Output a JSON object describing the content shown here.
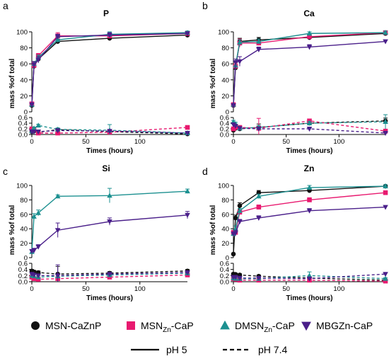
{
  "colors": {
    "MSN-CaZnP": "#111111",
    "MSNZn-CaP": "#e8196f",
    "DMSNZn-CaP": "#1c9090",
    "MBGZn-CaP": "#4a1f8a"
  },
  "legend": {
    "series": [
      {
        "key": "MSN-CaZnP",
        "pre": "MSN-CaZnP",
        "sub": "",
        "post": "",
        "marker": "circle"
      },
      {
        "key": "MSNZn-CaP",
        "pre": "MSN",
        "sub": "Zn",
        "post": "-CaP",
        "marker": "square"
      },
      {
        "key": "DMSNZn-CaP",
        "pre": "DMSN",
        "sub": "Zn",
        "post": "-CaP",
        "marker": "triangle"
      },
      {
        "key": "MBGZn-CaP",
        "pre": "MBGZn-CaP",
        "sub": "",
        "post": "",
        "marker": "triangle-down"
      }
    ],
    "lines": [
      {
        "label": "pH 5",
        "style": "solid"
      },
      {
        "label": "pH 7.4",
        "style": "dashed"
      }
    ]
  },
  "chart_data": [
    {
      "type": "line",
      "panel": "a",
      "title": "P",
      "xlabel": "Times (hours)",
      "ylabel": "mass %of total",
      "xlim": [
        0,
        144
      ],
      "xticks": [
        0,
        50,
        100
      ],
      "upper": {
        "ylim": [
          0,
          100
        ],
        "yticks": [
          0,
          20,
          40,
          60,
          80,
          100
        ]
      },
      "lower": {
        "ylim": [
          0,
          0.6
        ],
        "yticks": [
          0.0,
          0.2,
          0.4,
          0.6
        ]
      },
      "x": [
        0,
        2,
        6,
        24,
        72,
        144
      ],
      "series": [
        {
          "key": "MSN-CaZnP",
          "ph": "5",
          "part": "upper",
          "values": [
            8,
            57,
            66,
            88,
            92,
            96
          ],
          "err": [
            1,
            4,
            4,
            3,
            3,
            3
          ]
        },
        {
          "key": "MSNZn-CaP",
          "ph": "5",
          "part": "upper",
          "values": [
            10,
            58,
            70,
            95,
            95,
            98
          ],
          "err": [
            1,
            4,
            3,
            4,
            3,
            2
          ]
        },
        {
          "key": "DMSNZn-CaP",
          "ph": "5",
          "part": "upper",
          "values": [
            9,
            60,
            68,
            90,
            97,
            99
          ],
          "err": [
            1,
            3,
            3,
            3,
            3,
            2
          ]
        },
        {
          "key": "MBGZn-CaP",
          "ph": "5",
          "part": "upper",
          "values": [
            9,
            59,
            65,
            94,
            96,
            98
          ],
          "err": [
            1,
            4,
            4,
            3,
            3,
            2
          ]
        },
        {
          "key": "MSN-CaZnP",
          "ph": "7.4",
          "part": "lower",
          "values": [
            0.1,
            0.12,
            0.08,
            0.17,
            0.1,
            0.02
          ],
          "err": [
            0.03,
            0.03,
            0.03,
            0.05,
            0.04,
            0.01
          ]
        },
        {
          "key": "MSNZn-CaP",
          "ph": "7.4",
          "part": "lower",
          "values": [
            0.2,
            0.18,
            0.05,
            0.05,
            0.08,
            0.25
          ],
          "err": [
            0.04,
            0.03,
            0.02,
            0.02,
            0.03,
            0.04
          ]
        },
        {
          "key": "DMSNZn-CaP",
          "ph": "7.4",
          "part": "lower",
          "values": [
            0.12,
            0.22,
            0.32,
            0.18,
            0.15,
            0.05
          ],
          "err": [
            0.03,
            0.04,
            0.04,
            0.05,
            0.2,
            0.02
          ]
        },
        {
          "key": "MBGZn-CaP",
          "ph": "7.4",
          "part": "lower",
          "values": [
            0.1,
            0.1,
            0.1,
            0.14,
            0.12,
            0.05
          ],
          "err": [
            0.03,
            0.03,
            0.03,
            0.04,
            0.04,
            0.02
          ]
        }
      ]
    },
    {
      "type": "line",
      "panel": "b",
      "title": "Ca",
      "xlabel": "Times (hours)",
      "ylabel": "mass %of total",
      "xlim": [
        0,
        144
      ],
      "xticks": [
        0,
        50,
        100
      ],
      "upper": {
        "ylim": [
          0,
          100
        ],
        "yticks": [
          0,
          20,
          40,
          60,
          80,
          100
        ]
      },
      "lower": {
        "ylim": [
          0,
          0.6
        ],
        "yticks": [
          0.0,
          0.2,
          0.4,
          0.6
        ]
      },
      "x": [
        0,
        2,
        6,
        24,
        72,
        144
      ],
      "series": [
        {
          "key": "MSN-CaZnP",
          "ph": "5",
          "part": "upper",
          "values": [
            8,
            55,
            88,
            90,
            93,
            98
          ],
          "err": [
            1,
            4,
            4,
            3,
            3,
            2
          ]
        },
        {
          "key": "MSNZn-CaP",
          "ph": "5",
          "part": "upper",
          "values": [
            9,
            57,
            86,
            86,
            94,
            99
          ],
          "err": [
            1,
            4,
            5,
            3,
            3,
            2
          ]
        },
        {
          "key": "DMSNZn-CaP",
          "ph": "5",
          "part": "upper",
          "values": [
            9,
            58,
            87,
            88,
            98,
            99
          ],
          "err": [
            1,
            4,
            3,
            3,
            2,
            2
          ]
        },
        {
          "key": "MBGZn-CaP",
          "ph": "5",
          "part": "upper",
          "values": [
            8,
            62,
            63,
            78,
            81,
            88
          ],
          "err": [
            1,
            4,
            6,
            3,
            3,
            2
          ]
        },
        {
          "key": "MSN-CaZnP",
          "ph": "7.4",
          "part": "lower",
          "values": [
            0.15,
            0.22,
            0.2,
            0.25,
            0.4,
            0.48
          ],
          "err": [
            0.04,
            0.05,
            0.05,
            0.12,
            0.06,
            0.1
          ]
        },
        {
          "key": "MSNZn-CaP",
          "ph": "7.4",
          "part": "lower",
          "values": [
            0.2,
            0.25,
            0.25,
            0.22,
            0.48,
            0.12
          ],
          "err": [
            0.04,
            0.05,
            0.05,
            0.35,
            0.05,
            0.05
          ]
        },
        {
          "key": "DMSNZn-CaP",
          "ph": "7.4",
          "part": "lower",
          "values": [
            0.45,
            0.38,
            0.22,
            0.25,
            0.4,
            0.45
          ],
          "err": [
            0.05,
            0.05,
            0.04,
            0.06,
            0.06,
            0.25
          ]
        },
        {
          "key": "MBGZn-CaP",
          "ph": "7.4",
          "part": "lower",
          "values": [
            0.35,
            0.3,
            0.22,
            0.2,
            0.2,
            0.05
          ],
          "err": [
            0.05,
            0.05,
            0.04,
            0.04,
            0.04,
            0.02
          ]
        }
      ]
    },
    {
      "type": "line",
      "panel": "c",
      "title": "Si",
      "xlabel": "Times (hours)",
      "ylabel": "mass %of total",
      "xlim": [
        0,
        144
      ],
      "xticks": [
        0,
        50,
        100
      ],
      "upper": {
        "ylim": [
          0,
          100
        ],
        "yticks": [
          0,
          20,
          40,
          60,
          80,
          100
        ]
      },
      "lower": {
        "ylim": [
          0,
          0.6
        ],
        "yticks": [
          0.0,
          0.2,
          0.4,
          0.6
        ]
      },
      "x": [
        0,
        2,
        6,
        24,
        72,
        144
      ],
      "series": [
        {
          "key": "DMSNZn-CaP",
          "ph": "5",
          "part": "upper",
          "values": [
            8,
            57,
            62,
            85,
            86,
            92
          ],
          "err": [
            2,
            4,
            4,
            2,
            10,
            3
          ]
        },
        {
          "key": "MBGZn-CaP",
          "ph": "5",
          "part": "upper",
          "values": [
            9,
            10,
            15,
            38,
            50,
            59
          ],
          "err": [
            2,
            3,
            3,
            10,
            5,
            5
          ]
        },
        {
          "key": "MSN-CaZnP",
          "ph": "7.4",
          "part": "lower",
          "values": [
            0.35,
            0.32,
            0.3,
            0.25,
            0.28,
            0.35
          ],
          "err": [
            0.05,
            0.05,
            0.05,
            0.25,
            0.05,
            0.05
          ]
        },
        {
          "key": "MSNZn-CaP",
          "ph": "7.4",
          "part": "lower",
          "values": [
            0.15,
            0.1,
            0.08,
            0.1,
            0.15,
            0.22
          ],
          "err": [
            0.04,
            0.04,
            0.04,
            0.04,
            0.04,
            0.04
          ]
        },
        {
          "key": "DMSNZn-CaP",
          "ph": "7.4",
          "part": "lower",
          "values": [
            0.2,
            0.18,
            0.15,
            0.18,
            0.22,
            0.28
          ],
          "err": [
            0.05,
            0.05,
            0.04,
            0.05,
            0.05,
            0.05
          ]
        },
        {
          "key": "MBGZn-CaP",
          "ph": "7.4",
          "part": "lower",
          "values": [
            0.25,
            0.22,
            0.2,
            0.2,
            0.25,
            0.3
          ],
          "err": [
            0.05,
            0.05,
            0.05,
            0.35,
            0.05,
            0.05
          ]
        }
      ]
    },
    {
      "type": "line",
      "panel": "d",
      "title": "Zn",
      "xlabel": "Times (hours)",
      "ylabel": "mass %of total",
      "xlim": [
        0,
        144
      ],
      "xticks": [
        0,
        50,
        100
      ],
      "upper": {
        "ylim": [
          0,
          100
        ],
        "yticks": [
          0,
          20,
          40,
          60,
          80,
          100
        ]
      },
      "lower": {
        "ylim": [
          0,
          0.6
        ],
        "yticks": [
          0.0,
          0.2,
          0.4,
          0.6
        ]
      },
      "x": [
        0,
        2,
        6,
        24,
        72,
        144
      ],
      "series": [
        {
          "key": "MSN-CaZnP",
          "ph": "5",
          "part": "upper",
          "values": [
            5,
            55,
            72,
            90,
            93,
            99
          ],
          "err": [
            1,
            4,
            4,
            3,
            3,
            2
          ]
        },
        {
          "key": "MSNZn-CaP",
          "ph": "5",
          "part": "upper",
          "values": [
            35,
            35,
            63,
            70,
            80,
            90
          ],
          "err": [
            2,
            4,
            3,
            3,
            3,
            2
          ]
        },
        {
          "key": "DMSNZn-CaP",
          "ph": "5",
          "part": "upper",
          "values": [
            33,
            40,
            65,
            85,
            97,
            99
          ],
          "err": [
            2,
            4,
            3,
            3,
            3,
            2
          ]
        },
        {
          "key": "MBGZn-CaP",
          "ph": "5",
          "part": "upper",
          "values": [
            33,
            34,
            50,
            55,
            65,
            70
          ],
          "err": [
            2,
            4,
            3,
            3,
            3,
            2
          ]
        },
        {
          "key": "MSN-CaZnP",
          "ph": "7.4",
          "part": "lower",
          "values": [
            0.25,
            0.24,
            0.22,
            0.18,
            0.12,
            0.05
          ],
          "err": [
            0.04,
            0.04,
            0.04,
            0.04,
            0.04,
            0.02
          ]
        },
        {
          "key": "MSNZn-CaP",
          "ph": "7.4",
          "part": "lower",
          "values": [
            0.1,
            0.08,
            0.05,
            0.05,
            0.05,
            0.02
          ],
          "err": [
            0.03,
            0.03,
            0.02,
            0.02,
            0.02,
            0.01
          ]
        },
        {
          "key": "DMSNZn-CaP",
          "ph": "7.4",
          "part": "lower",
          "values": [
            0.12,
            0.1,
            0.1,
            0.1,
            0.2,
            0.1
          ],
          "err": [
            0.03,
            0.03,
            0.03,
            0.03,
            0.12,
            0.03
          ]
        },
        {
          "key": "MBGZn-CaP",
          "ph": "7.4",
          "part": "lower",
          "values": [
            0.15,
            0.15,
            0.12,
            0.12,
            0.1,
            0.25
          ],
          "err": [
            0.03,
            0.03,
            0.03,
            0.03,
            0.03,
            0.04
          ]
        }
      ]
    }
  ]
}
